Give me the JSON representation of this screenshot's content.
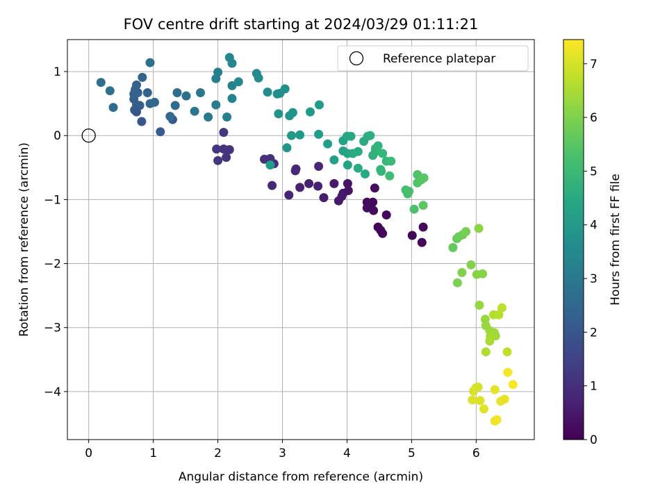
{
  "chart_data": {
    "type": "scatter",
    "title": "FOV centre drift starting at 2024/03/29 01:11:21",
    "xlabel": "Angular distance from reference (arcmin)",
    "ylabel": "Rotation from reference (arcmin)",
    "xlim": [
      -0.33,
      6.9
    ],
    "ylim": [
      -4.75,
      1.5
    ],
    "xticks": [
      0,
      1,
      2,
      3,
      4,
      5,
      6
    ],
    "yticks": [
      1,
      0,
      -1,
      -2,
      -3,
      -4
    ],
    "grid": true,
    "legend": {
      "placement": "top-right",
      "entries": [
        "Reference platepar"
      ]
    },
    "reference_point": {
      "x": 0,
      "y": 0
    },
    "colorbar": {
      "label": "Hours from first FF file",
      "min": 0,
      "max": 7.45,
      "ticks": [
        0,
        1,
        2,
        3,
        4,
        5,
        6,
        7
      ],
      "colormap": "viridis"
    },
    "points": [
      [
        4.48,
        -1.43,
        0.05
      ],
      [
        4.52,
        -1.48,
        0.1
      ],
      [
        4.55,
        -1.53,
        0.1
      ],
      [
        4.61,
        -1.24,
        0.15
      ],
      [
        5.01,
        -1.56,
        0.1
      ],
      [
        5.16,
        -1.67,
        0.1
      ],
      [
        5.18,
        -1.43,
        0.15
      ],
      [
        4.4,
        -1.04,
        0.2
      ],
      [
        4.41,
        -1.17,
        0.2
      ],
      [
        4.37,
        -1.11,
        0.2
      ],
      [
        4.31,
        -1.04,
        0.25
      ],
      [
        4.31,
        -1.13,
        0.25
      ],
      [
        4.43,
        -0.82,
        0.3
      ],
      [
        4.01,
        -0.75,
        0.4
      ],
      [
        4.02,
        -0.86,
        0.4
      ],
      [
        3.94,
        -0.9,
        0.45
      ],
      [
        3.92,
        -0.95,
        0.5
      ],
      [
        3.87,
        -1.02,
        0.5
      ],
      [
        3.8,
        -0.75,
        0.5
      ],
      [
        3.64,
        -0.97,
        0.6
      ],
      [
        3.55,
        -0.79,
        0.7
      ],
      [
        3.41,
        -0.75,
        0.7
      ],
      [
        3.27,
        -0.81,
        0.7
      ],
      [
        3.1,
        -0.93,
        0.75
      ],
      [
        3.21,
        -0.52,
        0.8
      ],
      [
        3.2,
        -0.55,
        0.8
      ],
      [
        3.56,
        -0.48,
        0.85
      ],
      [
        2.84,
        -0.78,
        0.85
      ],
      [
        2.87,
        -0.44,
        0.95
      ],
      [
        2.81,
        -0.36,
        1.0
      ],
      [
        2.72,
        -0.37,
        1.0
      ],
      [
        2.09,
        -0.21,
        1.05
      ],
      [
        2.13,
        -0.34,
        1.1
      ],
      [
        2.18,
        -0.22,
        1.1
      ],
      [
        1.98,
        -0.21,
        1.2
      ],
      [
        2.0,
        -0.39,
        1.2
      ],
      [
        2.09,
        0.05,
        1.2
      ],
      [
        0.71,
        0.4,
        2.0
      ],
      [
        0.74,
        0.37,
        2.0
      ],
      [
        0.82,
        0.22,
        2.05
      ],
      [
        1.11,
        0.06,
        2.1
      ],
      [
        1.3,
        0.25,
        2.1
      ],
      [
        0.74,
        0.48,
        2.2
      ],
      [
        0.79,
        0.47,
        2.2
      ],
      [
        0.7,
        0.57,
        2.25
      ],
      [
        0.7,
        0.65,
        2.3
      ],
      [
        0.72,
        0.72,
        2.3
      ],
      [
        0.74,
        0.79,
        2.35
      ],
      [
        0.76,
        0.67,
        2.35
      ],
      [
        0.83,
        0.91,
        2.4
      ],
      [
        0.91,
        0.67,
        2.4
      ],
      [
        0.95,
        0.5,
        2.5
      ],
      [
        1.02,
        0.52,
        2.5
      ],
      [
        1.34,
        0.47,
        2.55
      ],
      [
        1.26,
        0.3,
        2.6
      ],
      [
        1.37,
        0.67,
        2.6
      ],
      [
        0.38,
        0.44,
        2.65
      ],
      [
        0.33,
        0.7,
        2.7
      ],
      [
        0.19,
        0.83,
        2.7
      ],
      [
        0.95,
        1.14,
        2.75
      ],
      [
        1.51,
        0.62,
        2.75
      ],
      [
        1.64,
        0.38,
        2.9
      ],
      [
        1.73,
        0.67,
        2.95
      ],
      [
        1.85,
        0.29,
        3.0
      ],
      [
        1.97,
        0.48,
        3.1
      ],
      [
        1.97,
        0.89,
        3.15
      ],
      [
        2.0,
        0.99,
        3.2
      ],
      [
        2.14,
        0.29,
        3.2
      ],
      [
        2.22,
        0.58,
        3.3
      ],
      [
        2.22,
        0.78,
        3.35
      ],
      [
        2.18,
        1.22,
        3.4
      ],
      [
        2.22,
        1.13,
        3.45
      ],
      [
        2.32,
        0.84,
        3.5
      ],
      [
        2.6,
        0.97,
        3.55
      ],
      [
        2.63,
        0.9,
        3.6
      ],
      [
        2.77,
        0.68,
        3.65
      ],
      [
        2.92,
        0.65,
        3.7
      ],
      [
        2.96,
        0.66,
        3.7
      ],
      [
        3.04,
        0.73,
        3.75
      ],
      [
        2.94,
        0.34,
        3.8
      ],
      [
        3.11,
        0.31,
        3.85
      ],
      [
        3.16,
        0.36,
        3.85
      ],
      [
        3.07,
        -0.19,
        3.9
      ],
      [
        3.14,
        0.0,
        3.95
      ],
      [
        3.27,
        0.01,
        4.0
      ],
      [
        3.43,
        0.37,
        4.05
      ],
      [
        3.57,
        0.48,
        4.1
      ],
      [
        3.56,
        0.02,
        4.1
      ],
      [
        2.81,
        -0.46,
        4.15
      ],
      [
        3.7,
        -0.13,
        4.2
      ],
      [
        3.8,
        -0.38,
        4.25
      ],
      [
        3.94,
        -0.08,
        4.3
      ],
      [
        3.94,
        -0.24,
        4.35
      ],
      [
        4.01,
        -0.46,
        4.35
      ],
      [
        4.01,
        -0.28,
        4.35
      ],
      [
        4.0,
        -0.01,
        4.4
      ],
      [
        4.06,
        -0.01,
        4.45
      ],
      [
        4.09,
        -0.28,
        4.5
      ],
      [
        4.17,
        -0.25,
        4.55
      ],
      [
        4.17,
        -0.51,
        4.55
      ],
      [
        4.28,
        -0.6,
        4.55
      ],
      [
        4.26,
        -0.09,
        4.6
      ],
      [
        4.32,
        -0.01,
        4.65
      ],
      [
        4.36,
        0.0,
        4.7
      ],
      [
        4.4,
        -0.31,
        4.75
      ],
      [
        4.44,
        -0.2,
        4.8
      ],
      [
        4.44,
        -0.25,
        4.8
      ],
      [
        4.48,
        -0.16,
        4.85
      ],
      [
        4.52,
        -0.53,
        4.9
      ],
      [
        4.55,
        -0.28,
        4.95
      ],
      [
        4.53,
        -0.56,
        4.95
      ],
      [
        4.61,
        -0.4,
        5.0
      ],
      [
        4.68,
        -0.4,
        5.05
      ],
      [
        4.66,
        -0.63,
        5.1
      ],
      [
        4.91,
        -0.85,
        5.15
      ],
      [
        4.94,
        -0.91,
        5.2
      ],
      [
        4.96,
        -0.87,
        5.25
      ],
      [
        5.04,
        -1.15,
        5.3
      ],
      [
        5.09,
        -0.61,
        5.35
      ],
      [
        5.09,
        -0.74,
        5.4
      ],
      [
        5.15,
        -0.69,
        5.45
      ],
      [
        5.19,
        -0.66,
        5.5
      ],
      [
        5.18,
        -1.09,
        5.55
      ],
      [
        5.64,
        -1.75,
        5.65
      ],
      [
        5.7,
        -1.61,
        5.7
      ],
      [
        5.73,
        -1.58,
        5.75
      ],
      [
        5.79,
        -1.55,
        5.8
      ],
      [
        5.84,
        -1.5,
        5.9
      ],
      [
        5.71,
        -2.3,
        5.95
      ],
      [
        5.78,
        -2.14,
        6.0
      ],
      [
        5.92,
        -2.02,
        6.05
      ],
      [
        6.01,
        -2.17,
        6.1
      ],
      [
        6.1,
        -2.16,
        6.1
      ],
      [
        6.04,
        -1.45,
        6.15
      ],
      [
        6.05,
        -2.65,
        6.25
      ],
      [
        6.14,
        -2.87,
        6.3
      ],
      [
        6.15,
        -2.97,
        6.3
      ],
      [
        6.21,
        -3.05,
        6.35
      ],
      [
        6.28,
        -3.08,
        6.35
      ],
      [
        6.3,
        -3.13,
        6.4
      ],
      [
        6.22,
        -3.14,
        6.45
      ],
      [
        6.21,
        -3.21,
        6.5
      ],
      [
        6.15,
        -3.38,
        6.55
      ],
      [
        6.27,
        -2.8,
        6.6
      ],
      [
        6.35,
        -2.8,
        6.65
      ],
      [
        6.4,
        -2.69,
        6.7
      ],
      [
        6.48,
        -3.38,
        6.75
      ],
      [
        6.0,
        -3.94,
        6.85
      ],
      [
        6.03,
        -3.93,
        7.0
      ],
      [
        5.96,
        -3.99,
        7.0
      ],
      [
        5.94,
        -4.13,
        7.05
      ],
      [
        6.06,
        -4.14,
        7.05
      ],
      [
        6.12,
        -4.27,
        7.1
      ],
      [
        6.29,
        -3.97,
        7.15
      ],
      [
        6.38,
        -4.15,
        7.2
      ],
      [
        6.44,
        -4.12,
        7.2
      ],
      [
        6.29,
        -4.46,
        7.25
      ],
      [
        6.32,
        -4.44,
        7.3
      ],
      [
        6.49,
        -3.7,
        7.35
      ],
      [
        6.57,
        -3.89,
        7.4
      ]
    ]
  }
}
